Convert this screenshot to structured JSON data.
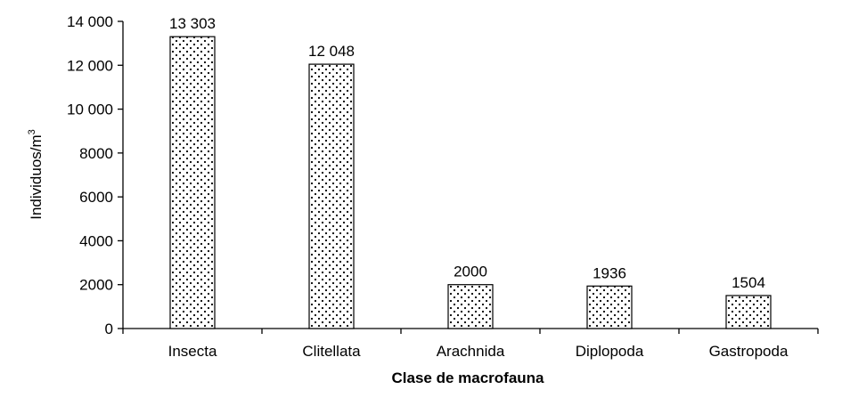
{
  "chart_data": {
    "type": "bar",
    "categories": [
      "Insecta",
      "Clitellata",
      "Arachnida",
      "Diplopoda",
      "Gastropoda"
    ],
    "values": [
      13303,
      12048,
      2000,
      1936,
      1504
    ],
    "data_labels": [
      "13 303",
      "12 048",
      "2000",
      "1936",
      "1504"
    ],
    "xlabel": "Clase de macrofauna",
    "ylabel": {
      "base": "Individuos/m",
      "sup": "3"
    },
    "ylim": [
      0,
      14000
    ],
    "yticks": [
      {
        "value": 0,
        "label": "0"
      },
      {
        "value": 2000,
        "label": "2000"
      },
      {
        "value": 4000,
        "label": "4000"
      },
      {
        "value": 6000,
        "label": "6000"
      },
      {
        "value": 8000,
        "label": "8000"
      },
      {
        "value": 10000,
        "label": "10 000"
      },
      {
        "value": 12000,
        "label": "12 000"
      },
      {
        "value": 14000,
        "label": "14 000"
      }
    ],
    "grid": false,
    "legend": "none",
    "bar_fill": "dotted pattern",
    "colors": {
      "bar_edge": "#000000",
      "dots": "#000000",
      "background": "#ffffff"
    }
  }
}
